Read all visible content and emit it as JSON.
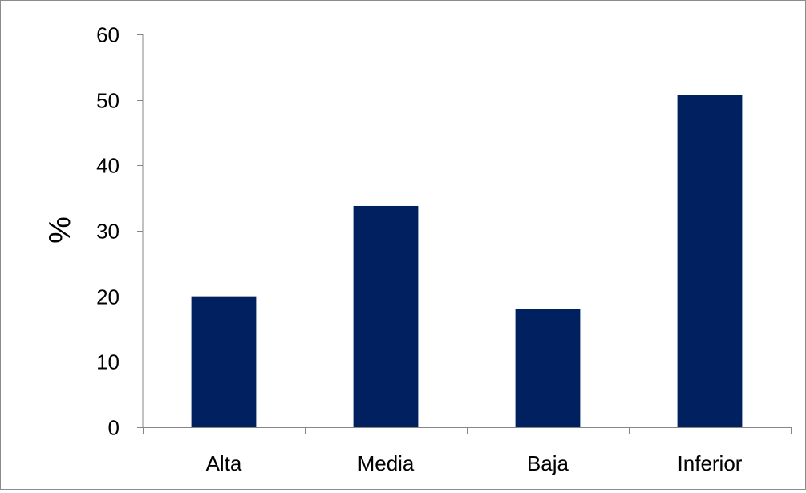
{
  "chart_data": {
    "type": "bar",
    "title": "",
    "xlabel": "",
    "ylabel": "%",
    "categories": [
      "Alta",
      "Media",
      "Baja",
      "Inferior"
    ],
    "values": [
      20,
      33.8,
      18,
      50.8
    ],
    "ylim": [
      0,
      60
    ],
    "yticks": [
      0,
      10,
      20,
      30,
      40,
      50,
      60
    ],
    "grid": false,
    "legend": "none",
    "colors": {
      "bar": "#002060",
      "axis": "#868686",
      "frame": "#8c8c8c",
      "text": "#000000"
    }
  }
}
